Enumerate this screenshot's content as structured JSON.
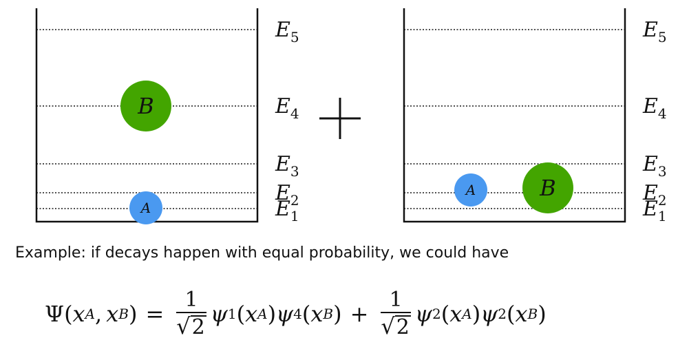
{
  "panels": [
    {
      "levels": [
        "E5",
        "E4",
        "E3",
        "E2",
        "E1"
      ],
      "particles": [
        {
          "label": "B",
          "level": "E4",
          "color": "#43a500"
        },
        {
          "label": "A",
          "level": "E1",
          "color": "#4a99f0"
        }
      ]
    },
    {
      "levels": [
        "E5",
        "E4",
        "E3",
        "E2",
        "E1"
      ],
      "particles": [
        {
          "label": "A",
          "level": "E2",
          "color": "#4a99f0"
        },
        {
          "label": "B",
          "level": "E2",
          "color": "#43a500"
        }
      ]
    }
  ],
  "level_letter": "E",
  "level_numbers": [
    "5",
    "4",
    "3",
    "2",
    "1"
  ],
  "plus_sign": "+",
  "caption": "Example: if decays happen with equal probability, we could have",
  "equation": {
    "lhs_psi": "Ψ",
    "x": "x",
    "A": "A",
    "B": "B",
    "equals": "=",
    "one": "1",
    "two": "2",
    "psi": "ψ",
    "term1_sub1": "1",
    "term1_sub2": "4",
    "term2_sub1": "2",
    "term2_sub2": "2",
    "plus": "+"
  }
}
